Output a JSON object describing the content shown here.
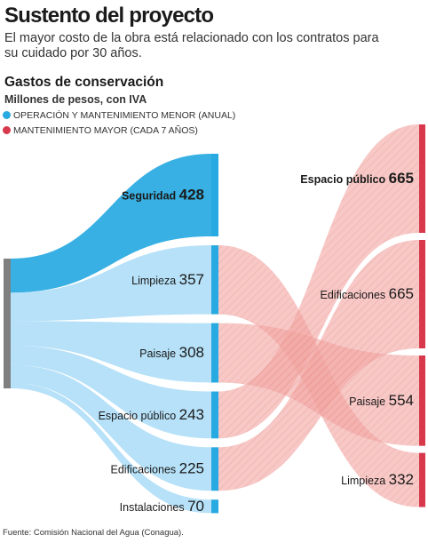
{
  "header": {
    "title": "Sustento del proyecto",
    "subtitle": "El mayor costo de la obra está relacionado con los contratos para su cuidado por 30 años."
  },
  "chart_data": {
    "type": "sankey",
    "title": "Gastos de conservación",
    "units": "Millones de pesos, con IVA",
    "legend": [
      {
        "name": "OPERACIÓN Y MANTENIMIENTO MENOR (ANUAL)",
        "color": "#27a9e1"
      },
      {
        "name": "MANTENIMIENTO MAYOR (CADA 7 AÑOS)",
        "color": "#d8384c"
      }
    ],
    "series": [
      {
        "name": "OPERACIÓN Y MANTENIMIENTO MENOR (ANUAL)",
        "categories": [
          "Seguridad",
          "Limpieza",
          "Paisaje",
          "Espacio público",
          "Edificaciones",
          "Instalaciones"
        ],
        "values": [
          428,
          357,
          308,
          243,
          225,
          70
        ]
      },
      {
        "name": "MANTENIMIENTO MAYOR (CADA 7 AÑOS)",
        "categories": [
          "Espacio público",
          "Edificaciones",
          "Paisaje",
          "Limpieza"
        ],
        "values": [
          665,
          665,
          554,
          332
        ]
      }
    ]
  },
  "footer": {
    "source": "Fuente: Comisión Nacional del Agua (Conagua)."
  }
}
